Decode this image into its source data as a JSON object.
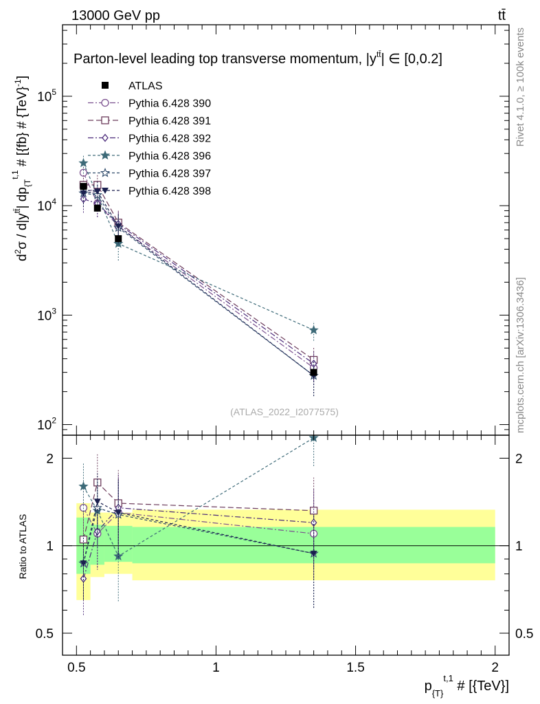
{
  "header": {
    "energy_label": "13000 GeV pp",
    "process_label": "tt̄"
  },
  "side_labels": {
    "rivet": "Rivet 4.1.0, ≥ 100k events",
    "mcplots": "mcplots.cern.ch [arXiv:1306.3436]"
  },
  "watermark": "(ATLAS_2022_I2077575)",
  "chart_data": [
    {
      "type": "scatter",
      "panel": "main",
      "title": "Parton-level leading top transverse momentum, |y",
      "title_super": "tt̄",
      "title_suffix": "| ∈ [0,0.2]",
      "ylabel": "d²σ / d|y^tt̄| dp_{T}^{t,1} # [{fb} # {TeV}⁻¹]",
      "ylabel_parts": {
        "a": "d",
        "b": "2",
        "c": "σ / d|y",
        "d": "tt̄",
        "e": "| dp",
        "f": "{T",
        "g": "t,1",
        "h": " # [{fb} # {TeV}",
        "i": "-1",
        "j": "]"
      },
      "yscale": "log",
      "ylim": [
        80,
        450000
      ],
      "xlim": [
        0.45,
        2.05
      ],
      "ytick_values": [
        100,
        1000,
        10000,
        100000
      ],
      "ytick_labels": [
        {
          "base": "10",
          "exp": "2"
        },
        {
          "base": "10",
          "exp": "3"
        },
        {
          "base": "10",
          "exp": "4"
        },
        {
          "base": "10",
          "exp": "5"
        }
      ],
      "legend_position": "top-left",
      "data": {
        "name": "ATLAS",
        "x": [
          0.525,
          0.575,
          0.65,
          1.35
        ],
        "xerr": [
          0.025,
          0.025,
          0.05,
          0.65
        ],
        "y": [
          15000,
          9500,
          5000,
          300
        ]
      },
      "series": [
        {
          "name": "Pythia 6.428 390",
          "color": "#7a4f8e",
          "dash": "8,3,2,3",
          "marker": "circle-open",
          "x": [
            0.525,
            0.575,
            0.65,
            1.35
          ],
          "y": [
            20000,
            10500,
            6500,
            330
          ],
          "err": [
            0.22,
            0.25,
            0.3,
            0.3
          ]
        },
        {
          "name": "Pythia 6.428 391",
          "color": "#6b3a5a",
          "dash": "8,4",
          "marker": "square-open",
          "x": [
            0.525,
            0.575,
            0.65,
            1.35
          ],
          "y": [
            15500,
            15500,
            7000,
            390
          ],
          "err": [
            0.25,
            0.25,
            0.3,
            0.3
          ]
        },
        {
          "name": "Pythia 6.428 392",
          "color": "#4b2a7a",
          "dash": "8,3,2,3",
          "marker": "diamond-open",
          "x": [
            0.525,
            0.575,
            0.65,
            1.35
          ],
          "y": [
            11500,
            10500,
            6800,
            360
          ],
          "err": [
            0.25,
            0.25,
            0.3,
            0.3
          ]
        },
        {
          "name": "Pythia 6.428 396",
          "color": "#3d6a78",
          "dash": "4,3",
          "marker": "star-filled",
          "x": [
            0.525,
            0.575,
            0.65,
            1.35
          ],
          "y": [
            24500,
            12500,
            4500,
            730
          ],
          "err": [
            0.2,
            0.25,
            0.3,
            0.2
          ]
        },
        {
          "name": "Pythia 6.428 397",
          "color": "#2e4a6b",
          "dash": "4,3",
          "marker": "star-open",
          "x": [
            0.525,
            0.575,
            0.65,
            1.35
          ],
          "y": [
            13000,
            12500,
            6300,
            280
          ],
          "err": [
            0.25,
            0.25,
            0.3,
            0.35
          ]
        },
        {
          "name": "Pythia 6.428 398",
          "color": "#1a1f4e",
          "dash": "4,3",
          "marker": "triangle-down-filled",
          "x": [
            0.525,
            0.575,
            0.65,
            1.35
          ],
          "y": [
            13000,
            13500,
            6500,
            280
          ],
          "err": [
            0.25,
            0.25,
            0.3,
            0.35
          ]
        }
      ]
    },
    {
      "type": "scatter",
      "panel": "ratio",
      "ylabel": "Ratio to ATLAS",
      "xlabel": "p_{T}^{t,1} # [{TeV}]",
      "xlabel_parts": {
        "a": "p",
        "b": "{T",
        "c": "}",
        "d": "t,1",
        "e": " # [{TeV}]"
      },
      "yscale": "log",
      "ylim": [
        0.42,
        2.4
      ],
      "xlim": [
        0.45,
        2.05
      ],
      "ytick_values": [
        0.5,
        1,
        2
      ],
      "ytick_labels": [
        "0.5",
        "1",
        "2"
      ],
      "xtick_values": [
        0.5,
        1,
        1.5,
        2
      ],
      "xtick_labels": [
        "0.5",
        "1",
        "1.5",
        "2"
      ],
      "bands": [
        {
          "x0": 0.5,
          "x1": 0.55,
          "yellow": [
            0.65,
            1.4
          ],
          "green": [
            0.8,
            1.25
          ]
        },
        {
          "x0": 0.55,
          "x1": 0.6,
          "yellow": [
            0.78,
            1.3
          ],
          "green": [
            0.86,
            1.18
          ]
        },
        {
          "x0": 0.6,
          "x1": 0.7,
          "yellow": [
            0.8,
            1.3
          ],
          "green": [
            0.88,
            1.17
          ]
        },
        {
          "x0": 0.7,
          "x1": 2.0,
          "yellow": [
            0.76,
            1.33
          ],
          "green": [
            0.87,
            1.16
          ]
        }
      ],
      "series": [
        {
          "name": "Pythia 6.428 390",
          "y": [
            1.35,
            1.1,
            1.3,
            1.1
          ],
          "err": [
            0.22,
            0.25,
            0.3,
            0.3
          ]
        },
        {
          "name": "Pythia 6.428 391",
          "y": [
            1.05,
            1.65,
            1.4,
            1.32
          ],
          "err": [
            0.25,
            0.25,
            0.3,
            0.3
          ]
        },
        {
          "name": "Pythia 6.428 392",
          "y": [
            0.77,
            1.12,
            1.35,
            1.2
          ],
          "err": [
            0.25,
            0.25,
            0.3,
            0.3
          ]
        },
        {
          "name": "Pythia 6.428 396",
          "y": [
            1.6,
            1.32,
            0.92,
            2.35
          ],
          "err": [
            0.2,
            0.25,
            0.3,
            0.2
          ]
        },
        {
          "name": "Pythia 6.428 397",
          "y": [
            0.87,
            1.35,
            1.28,
            0.94
          ],
          "err": [
            0.25,
            0.25,
            0.3,
            0.35
          ]
        },
        {
          "name": "Pythia 6.428 398",
          "y": [
            0.87,
            1.42,
            1.3,
            0.94
          ],
          "err": [
            0.25,
            0.25,
            0.3,
            0.35
          ]
        }
      ]
    }
  ]
}
